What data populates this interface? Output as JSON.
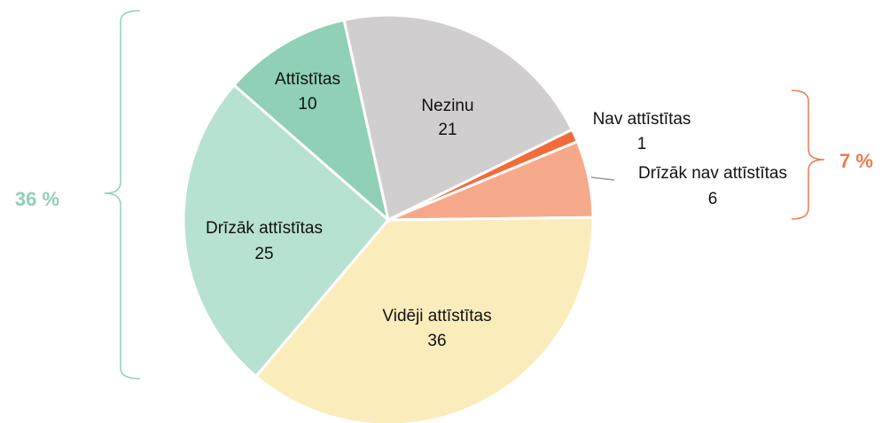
{
  "chart_data": {
    "type": "pie",
    "categories": [
      "Nezinu",
      "Nav attīstītas",
      "Drīzāk nav attīstītas",
      "Vidēji attīstītas",
      "Drīzāk attīstītas",
      "Attīstītas"
    ],
    "values": [
      21,
      1,
      6,
      36,
      25,
      10
    ],
    "colors": [
      "#d0cece",
      "#f26b3a",
      "#f6a98a",
      "#fbecbb",
      "#b7e1d1",
      "#8fd0b6"
    ],
    "annotations": [
      {
        "text": "36 %",
        "color": "#8fd0b6"
      },
      {
        "text": "7 %",
        "color": "#ee7a4e"
      }
    ]
  }
}
